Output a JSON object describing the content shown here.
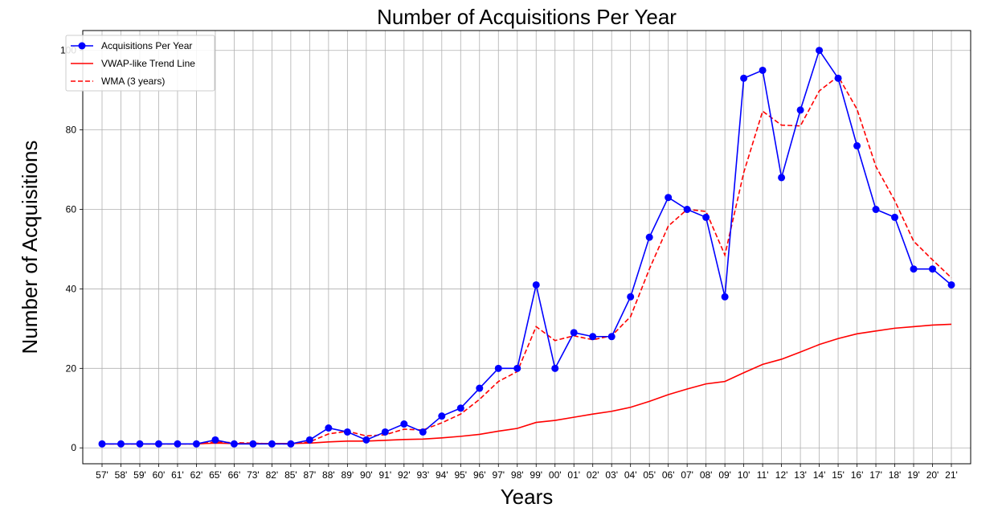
{
  "chart_data": {
    "type": "line",
    "title": "Number of Acquisitions Per Year",
    "xlabel": "Years",
    "ylabel": "Number of Acquisitions",
    "categories": [
      "57'",
      "58'",
      "59'",
      "60'",
      "61'",
      "62'",
      "65'",
      "66'",
      "73'",
      "82'",
      "85'",
      "87'",
      "88'",
      "89'",
      "90'",
      "91'",
      "92'",
      "93'",
      "94'",
      "95'",
      "96'",
      "97'",
      "98'",
      "99'",
      "00'",
      "01'",
      "02'",
      "03'",
      "04'",
      "05'",
      "06'",
      "07'",
      "08'",
      "09'",
      "10'",
      "11'",
      "12'",
      "13'",
      "14'",
      "15'",
      "16'",
      "17'",
      "18'",
      "19'",
      "20'",
      "21'"
    ],
    "ylim": [
      -4,
      105
    ],
    "yticks": [
      0,
      20,
      40,
      60,
      80,
      100
    ],
    "grid": true,
    "legend_position": "top-left",
    "series": [
      {
        "name": "Acquisitions Per Year",
        "color": "#0000ff",
        "style": "solid-marker",
        "values": [
          1,
          1,
          1,
          1,
          1,
          1,
          2,
          1,
          1,
          1,
          1,
          2,
          5,
          4,
          2,
          4,
          6,
          4,
          8,
          10,
          15,
          20,
          20,
          41,
          20,
          29,
          28,
          28,
          38,
          53,
          63,
          60,
          58,
          38,
          93,
          95,
          68,
          85,
          100,
          93,
          76,
          60,
          58,
          45,
          45,
          41
        ]
      },
      {
        "name": "VWAP-like Trend Line",
        "color": "#ff0000",
        "style": "solid",
        "values": [
          1,
          1,
          1,
          1,
          1,
          1,
          1.2,
          1.1,
          1.1,
          1.1,
          1.1,
          1.2,
          1.5,
          1.7,
          1.7,
          1.9,
          2.1,
          2.2,
          2.5,
          2.9,
          3.4,
          4.2,
          4.9,
          6.4,
          6.9,
          7.7,
          8.5,
          9.2,
          10.2,
          11.7,
          13.4,
          14.8,
          16.1,
          16.7,
          18.9,
          21,
          22.3,
          24.1,
          26,
          27.5,
          28.7,
          29.4,
          30.1,
          30.5,
          30.9,
          31.1
        ]
      },
      {
        "name": "WMA (3 years)",
        "color": "#ff0000",
        "style": "dashed",
        "values": [
          1,
          1,
          1,
          1,
          1,
          1,
          1.5,
          1.3,
          1.2,
          1,
          1,
          1.5,
          3.5,
          4.2,
          3,
          3.3,
          4.7,
          4.5,
          6.3,
          8.5,
          12.2,
          16.7,
          19.2,
          30.5,
          27,
          28.2,
          27.2,
          28.2,
          33,
          45,
          55.8,
          60,
          59.5,
          48.5,
          69.3,
          84.7,
          81.2,
          81,
          89.8,
          93.5,
          85.2,
          70.8,
          62.2,
          52,
          47.3,
          42.8
        ]
      }
    ]
  }
}
